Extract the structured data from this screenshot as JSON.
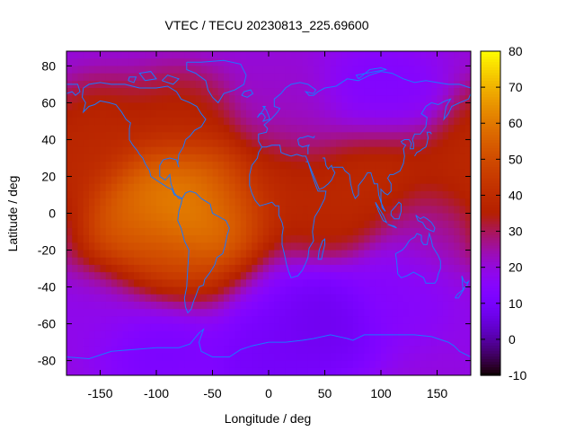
{
  "chart_data": {
    "type": "heatmap",
    "title": "VTEC / TECU 20230813_225.69600",
    "xlabel": "Longitude / deg",
    "ylabel": "Latitude / deg",
    "xlim": [
      -180,
      180
    ],
    "ylim": [
      -88,
      88
    ],
    "xticks": [
      -150,
      -100,
      -50,
      0,
      50,
      100,
      150
    ],
    "yticks": [
      -80,
      -60,
      -40,
      -20,
      0,
      20,
      40,
      60,
      80
    ],
    "colorbar": {
      "range": [
        -10,
        80
      ],
      "ticks": [
        -10,
        0,
        10,
        20,
        30,
        40,
        50,
        60,
        70,
        80
      ],
      "colormap": "gnuplot-pm3d",
      "colors": {
        "low": "#000000",
        "mid_low": "#3a00c8",
        "mid": "#8a10f0",
        "mid_high": "#d43a1a",
        "high": "#ffee00"
      }
    },
    "overlay": "coastlines",
    "overlay_color": "#1a78ff",
    "features": [
      {
        "lon": -110,
        "lat": 5,
        "value": 62
      },
      {
        "lon": -60,
        "lat": 0,
        "value": 70
      },
      {
        "lon": -80,
        "lat": 15,
        "value": 66
      },
      {
        "lon": -130,
        "lat": -10,
        "value": 55
      },
      {
        "lon": -90,
        "lat": -25,
        "value": 50
      },
      {
        "lon": -40,
        "lat": 10,
        "value": 48
      },
      {
        "lon": 10,
        "lat": 20,
        "value": 40
      },
      {
        "lon": 60,
        "lat": 5,
        "value": 40
      },
      {
        "lon": 100,
        "lat": 25,
        "value": 42
      },
      {
        "lon": 175,
        "lat": 20,
        "value": 40
      },
      {
        "lon": -150,
        "lat": 40,
        "value": 40
      },
      {
        "lon": -80,
        "lat": 45,
        "value": 38
      },
      {
        "lon": 20,
        "lat": 50,
        "value": 22
      },
      {
        "lon": 100,
        "lat": 60,
        "value": 12
      },
      {
        "lon": 120,
        "lat": -40,
        "value": 14
      },
      {
        "lon": 50,
        "lat": -60,
        "value": 6
      },
      {
        "lon": -100,
        "lat": -70,
        "value": 10
      },
      {
        "lon": 0,
        "lat": -80,
        "value": 8
      },
      {
        "lon": -150,
        "lat": -50,
        "value": 18
      },
      {
        "lon": 150,
        "lat": -10,
        "value": 25
      }
    ],
    "background_value": 20
  }
}
